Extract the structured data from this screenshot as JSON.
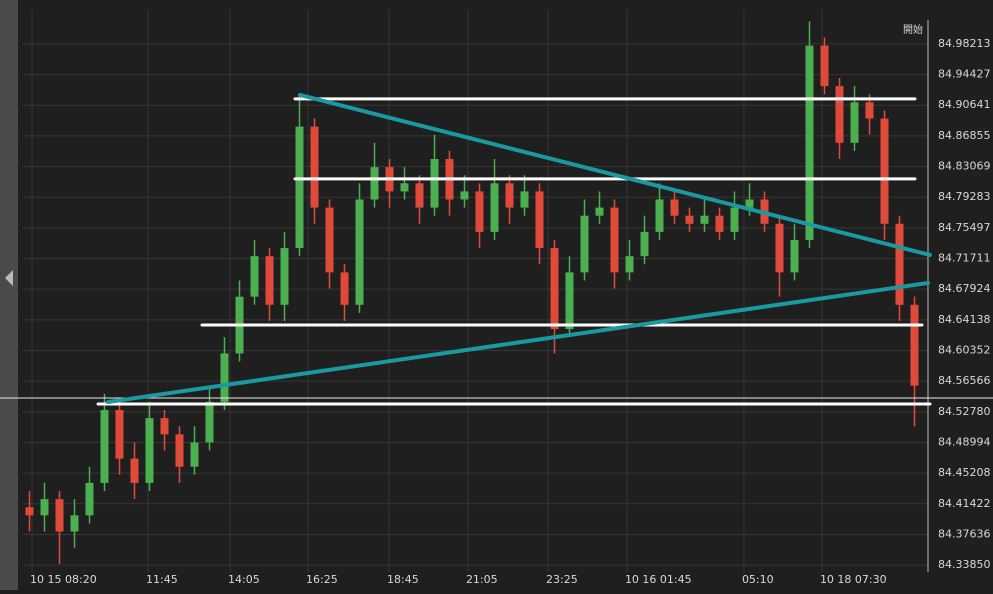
{
  "chart_data": {
    "type": "candlestick",
    "corner_label": "開始",
    "up_color": "#4caf50",
    "down_color": "#e04a3a",
    "xlim": [
      0,
      60.4
    ],
    "ylim": [
      84.33,
      85.024
    ],
    "grid": true,
    "xticks": [
      {
        "value": 0.67,
        "label": "10 15 08:20"
      },
      {
        "value": 8.4,
        "label": "11:45"
      },
      {
        "value": 13.87,
        "label": "14:05"
      },
      {
        "value": 19.07,
        "label": "16:25"
      },
      {
        "value": 24.47,
        "label": "18:45"
      },
      {
        "value": 29.73,
        "label": "21:05"
      },
      {
        "value": 35.07,
        "label": "23:25"
      },
      {
        "value": 40.33,
        "label": "10 16 01:45"
      },
      {
        "value": 48.13,
        "label": "05:10"
      },
      {
        "value": 53.33,
        "label": "10 18 07:30"
      }
    ],
    "yticks": [
      {
        "value": 84.3385,
        "label": "84.33850"
      },
      84.37636,
      84.41422,
      84.45208,
      84.48994,
      {
        "value": 84.5278,
        "label": "84.52780"
      },
      84.56566,
      84.60352,
      84.64138,
      84.67924,
      84.71711,
      84.75497,
      84.79283,
      84.83069,
      84.86855,
      84.90641,
      84.94427,
      84.98213
    ],
    "open": [
      84.41,
      84.4,
      84.42,
      84.38,
      84.4,
      84.44,
      84.53,
      84.47,
      84.44,
      84.52,
      84.5,
      84.46,
      84.49,
      84.54,
      84.6,
      84.67,
      84.72,
      84.66,
      84.73,
      84.88,
      84.78,
      84.7,
      84.66,
      84.79,
      84.83,
      84.8,
      84.81,
      84.78,
      84.84,
      84.79,
      84.8,
      84.75,
      84.81,
      84.78,
      84.8,
      84.73,
      84.63,
      84.7,
      84.77,
      84.78,
      84.7,
      84.72,
      84.75,
      84.79,
      84.77,
      84.76,
      84.77,
      84.75,
      84.78,
      84.79,
      84.76,
      84.7,
      84.74,
      84.98,
      84.93,
      84.86,
      84.91,
      84.89,
      84.76,
      84.66
    ],
    "high": [
      84.43,
      84.44,
      84.43,
      84.42,
      84.46,
      84.55,
      84.54,
      84.49,
      84.54,
      84.53,
      84.51,
      84.51,
      84.56,
      84.62,
      84.69,
      84.74,
      84.73,
      84.75,
      84.92,
      84.89,
      84.79,
      84.71,
      84.81,
      84.86,
      84.84,
      84.83,
      84.82,
      84.87,
      84.85,
      84.82,
      84.81,
      84.84,
      84.82,
      84.82,
      84.81,
      84.74,
      84.72,
      84.79,
      84.8,
      84.79,
      84.74,
      84.77,
      84.81,
      84.8,
      84.78,
      84.79,
      84.78,
      84.8,
      84.81,
      84.8,
      84.77,
      84.76,
      85.01,
      84.99,
      84.94,
      84.93,
      84.92,
      84.9,
      84.77,
      84.67
    ],
    "low": [
      84.38,
      84.38,
      84.34,
      84.36,
      84.39,
      84.43,
      84.45,
      84.42,
      84.43,
      84.48,
      84.44,
      84.45,
      84.48,
      84.53,
      84.59,
      84.66,
      84.64,
      84.64,
      84.72,
      84.76,
      84.68,
      84.64,
      84.65,
      84.78,
      84.78,
      84.79,
      84.76,
      84.77,
      84.77,
      84.78,
      84.73,
      84.74,
      84.76,
      84.77,
      84.71,
      84.6,
      84.62,
      84.69,
      84.76,
      84.68,
      84.69,
      84.71,
      84.74,
      84.76,
      84.75,
      84.75,
      84.74,
      84.74,
      84.77,
      84.75,
      84.67,
      84.69,
      84.73,
      84.92,
      84.84,
      84.85,
      84.87,
      84.74,
      84.64,
      84.51
    ],
    "close": [
      84.4,
      84.42,
      84.38,
      84.4,
      84.44,
      84.53,
      84.47,
      84.44,
      84.52,
      84.5,
      84.46,
      84.49,
      84.54,
      84.6,
      84.67,
      84.72,
      84.66,
      84.73,
      84.88,
      84.78,
      84.7,
      84.66,
      84.79,
      84.83,
      84.8,
      84.81,
      84.78,
      84.84,
      84.79,
      84.8,
      84.75,
      84.81,
      84.78,
      84.8,
      84.73,
      84.63,
      84.7,
      84.77,
      84.78,
      84.7,
      84.72,
      84.75,
      84.79,
      84.77,
      84.76,
      84.77,
      84.75,
      84.78,
      84.79,
      84.76,
      84.7,
      84.74,
      84.98,
      84.93,
      84.86,
      84.91,
      84.89,
      84.76,
      84.66,
      84.56
    ],
    "current_price": 84.5448,
    "lines": [
      {
        "color": "#ffffff",
        "x": [
          18.2,
          59.53
        ],
        "y": [
          84.9142,
          84.9142
        ]
      },
      {
        "color": "#ffffff",
        "x": [
          18.2,
          59.53
        ],
        "y": [
          84.8154,
          84.8154
        ]
      },
      {
        "color": "#ffffff",
        "x": [
          12.0,
          60.0
        ],
        "y": [
          84.635,
          84.635
        ]
      },
      {
        "color": "#ffffff",
        "x": [
          5.07,
          60.53
        ],
        "y": [
          84.5374,
          84.5374
        ]
      },
      {
        "color": "#1a9aa0",
        "x": [
          18.53,
          60.53
        ],
        "y": [
          84.9191,
          84.7215
        ]
      },
      {
        "color": "#1a9aa0",
        "x": [
          5.73,
          60.4
        ],
        "y": [
          84.5399,
          84.6869
        ]
      }
    ]
  }
}
